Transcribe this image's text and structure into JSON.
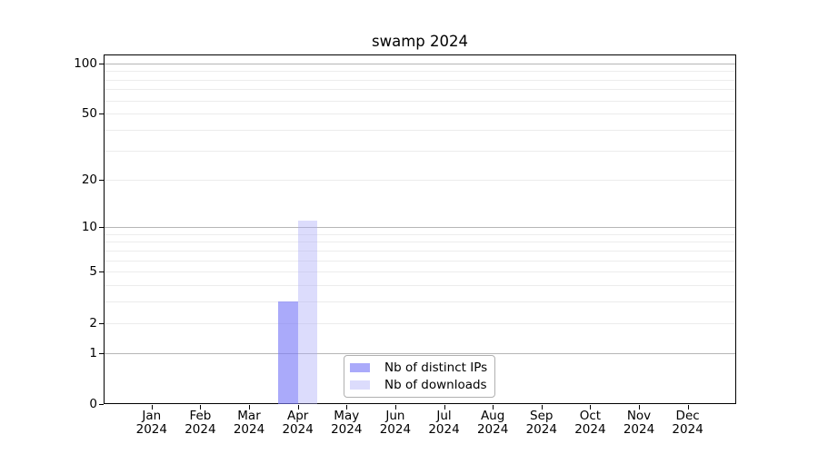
{
  "figure": {
    "background": "#ffffff"
  },
  "chart_data": {
    "type": "bar",
    "title": "swamp 2024",
    "xlabel": "",
    "ylabel": "",
    "categories": [
      "Jan",
      "Feb",
      "Mar",
      "Apr",
      "May",
      "Jun",
      "Jul",
      "Aug",
      "Sep",
      "Oct",
      "Nov",
      "Dec"
    ],
    "category_year": "2024",
    "series": [
      {
        "name": "Nb of distinct IPs",
        "color": "rgba(124,124,247,0.65)",
        "values": [
          0,
          0,
          0,
          3,
          0,
          0,
          0,
          0,
          0,
          0,
          0,
          0
        ]
      },
      {
        "name": "Nb of downloads",
        "color": "rgba(171,171,248,0.42)",
        "values": [
          0,
          0,
          0,
          11,
          0,
          0,
          0,
          0,
          0,
          0,
          0,
          0
        ]
      }
    ],
    "y_scale": "log1p",
    "y_axis": {
      "tick_values": [
        0,
        1,
        2,
        5,
        10,
        20,
        50,
        100
      ],
      "tick_labels": [
        "0",
        "1",
        "2",
        "5",
        "10",
        "20",
        "50",
        "100"
      ],
      "major_gridlines": [
        1,
        10,
        100
      ],
      "minor_gridlines": [
        2,
        3,
        4,
        5,
        6,
        7,
        8,
        9,
        20,
        30,
        40,
        50,
        60,
        70,
        80,
        90
      ],
      "ylim": [
        0,
        113
      ]
    },
    "grid": true,
    "legend": {
      "position": "lower center",
      "entries": [
        "Nb of distinct IPs",
        "Nb of downloads"
      ]
    }
  },
  "colors": {
    "major_grid": "#b6b6b6",
    "minor_grid": "#ececec",
    "spine": "#000000",
    "text": "#000000",
    "legend_border": "#b0b0b0"
  }
}
